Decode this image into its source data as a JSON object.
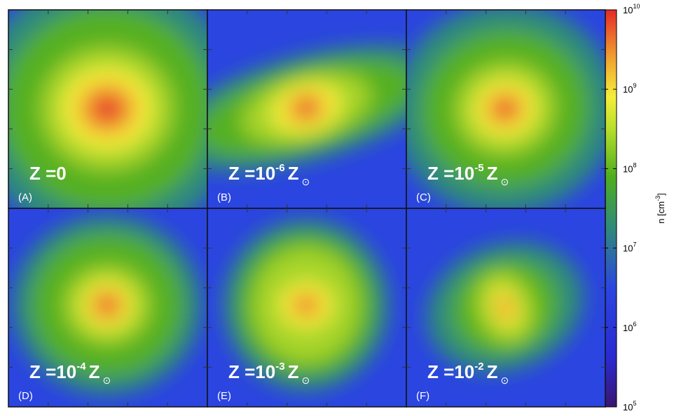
{
  "panels": [
    {
      "label": "(A)",
      "z_text": "Z =0"
    },
    {
      "label": "(B)",
      "z_text": "Z =10",
      "z_exp": "-6",
      "z_unit": "Z",
      "z_sub": "⊙"
    },
    {
      "label": "(C)",
      "z_text": "Z =10",
      "z_exp": "-5",
      "z_unit": "Z",
      "z_sub": "⊙"
    },
    {
      "label": "(D)",
      "z_text": "Z =10",
      "z_exp": "-4",
      "z_unit": "Z",
      "z_sub": "⊙"
    },
    {
      "label": "(E)",
      "z_text": "Z =10",
      "z_exp": "-3",
      "z_unit": "Z",
      "z_sub": "⊙"
    },
    {
      "label": "(F)",
      "z_text": "Z =10",
      "z_exp": "-2",
      "z_unit": "Z",
      "z_sub": "⊙"
    }
  ],
  "colorbar": {
    "label": "n [cm",
    "label_exp": "-3",
    "label_end": "]",
    "ticks": [
      {
        "base": "10",
        "exp": "10"
      },
      {
        "base": "10",
        "exp": "9"
      },
      {
        "base": "10",
        "exp": "8"
      },
      {
        "base": "10",
        "exp": "7"
      },
      {
        "base": "10",
        "exp": "6"
      },
      {
        "base": "10",
        "exp": "5"
      }
    ]
  }
}
